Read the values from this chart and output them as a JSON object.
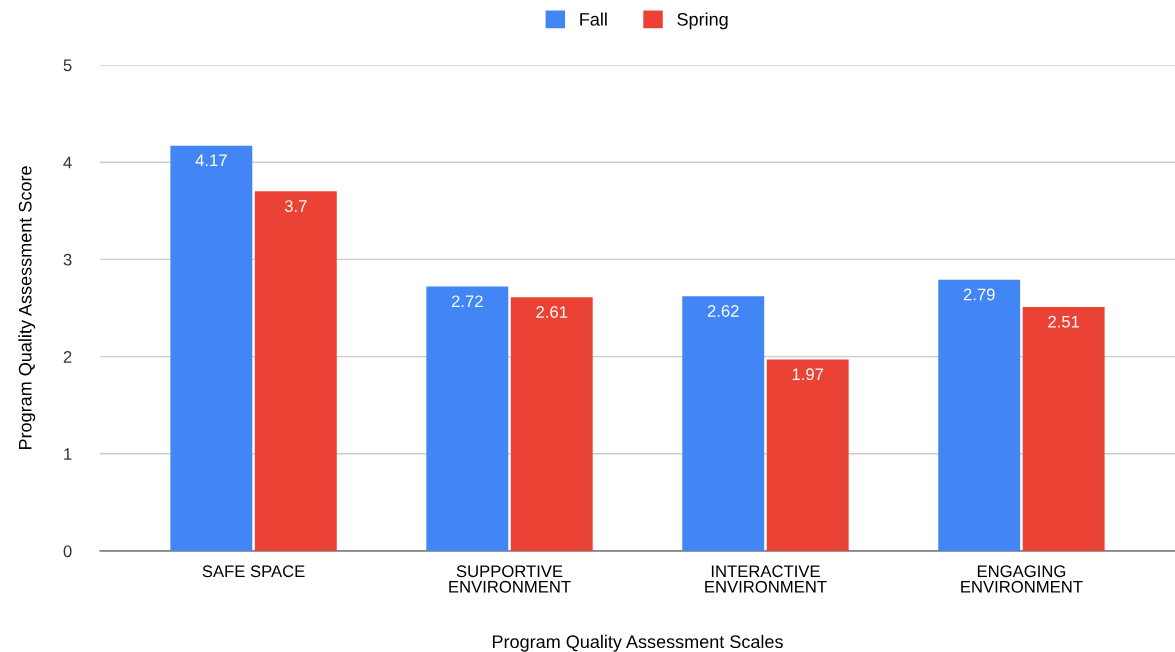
{
  "chart_data": {
    "type": "bar",
    "xlabel": "Program Quality Assessment Scales",
    "ylabel": "Program Quality Assessment Score",
    "categories": [
      "SAFE SPACE",
      "SUPPORTIVE\nENVIRONMENT",
      "INTERACTIVE\nENVIRONMENT",
      "ENGAGING\nENVIRONMENT"
    ],
    "series": [
      {
        "name": "Fall",
        "color": "#4285f4",
        "values": [
          4.17,
          2.72,
          2.62,
          2.79
        ]
      },
      {
        "name": "Spring",
        "color": "#ea4335",
        "values": [
          3.7,
          2.61,
          1.97,
          2.51
        ]
      }
    ],
    "ylim": [
      0,
      5
    ],
    "yticks": [
      0,
      1,
      2,
      3,
      4,
      5
    ],
    "grid": "y",
    "legend": "top",
    "data_labels": true
  }
}
